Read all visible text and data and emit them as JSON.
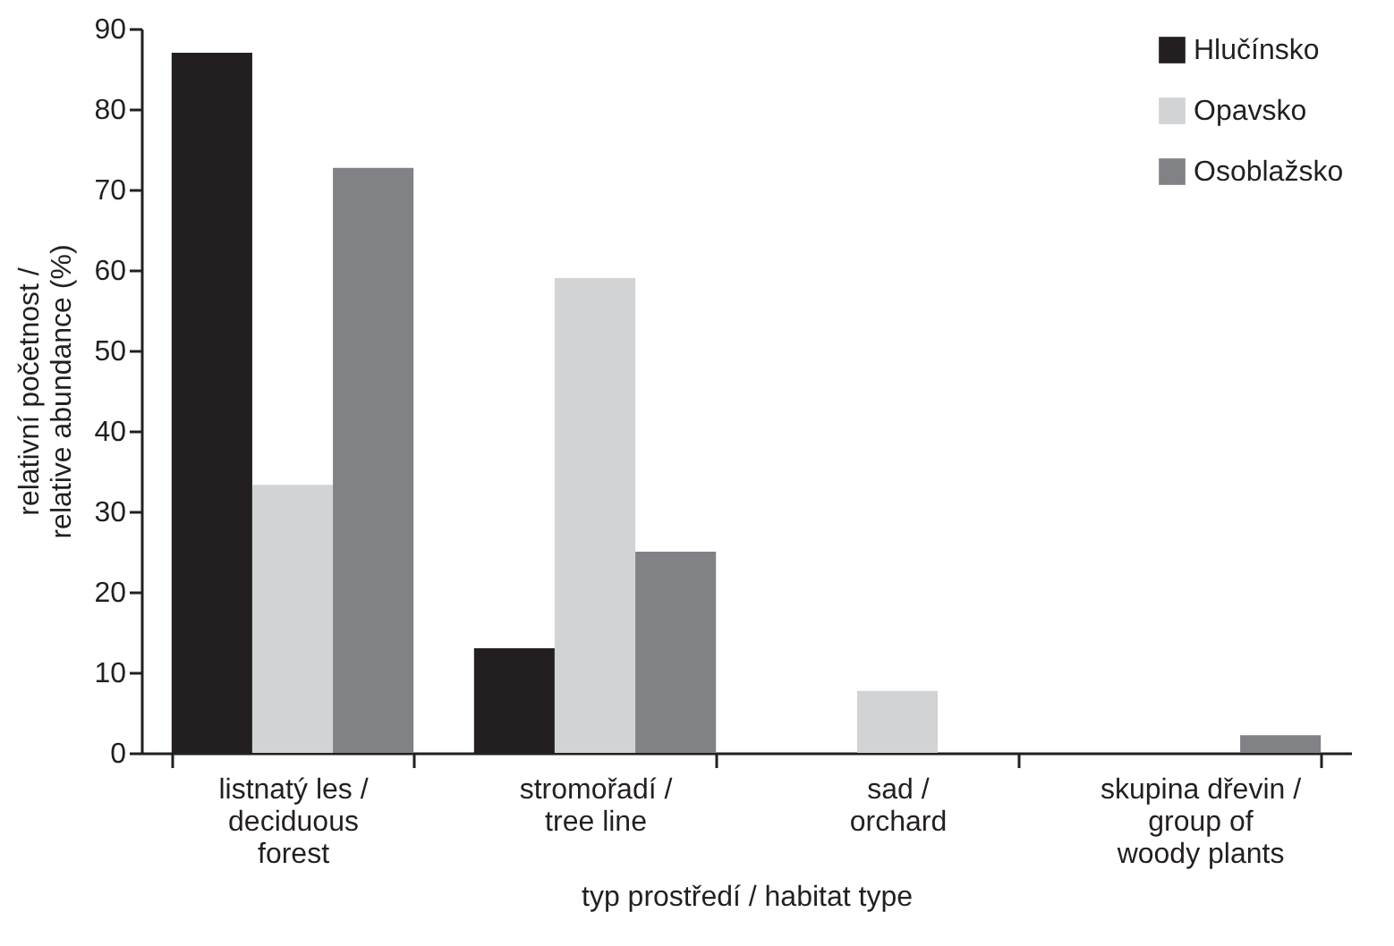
{
  "chart_data": {
    "type": "bar",
    "xlabel": "typ prostředí / habitat type",
    "ylabel": "relativní početnost /\nrelative abundance (%)",
    "categories": [
      "listnatý les /\ndeciduous\nforest",
      "stromořadí /\ntree line",
      "sad /\norchard",
      "skupina dřevin /\ngroup of\nwoody plants"
    ],
    "series": [
      {
        "name": "Hlučínsko",
        "color": "#231f20",
        "values": [
          87,
          13,
          0,
          0
        ]
      },
      {
        "name": "Opavsko",
        "color": "#d1d3d4",
        "values": [
          33.3,
          59,
          7.7,
          0
        ]
      },
      {
        "name": "Osoblažsko",
        "color": "#808285",
        "values": [
          72.7,
          25,
          0,
          2.2
        ]
      }
    ],
    "ylim": [
      0,
      90
    ],
    "yticks": [
      0,
      10,
      20,
      30,
      40,
      50,
      60,
      70,
      80,
      90
    ],
    "grid": false,
    "legend": "top right"
  }
}
